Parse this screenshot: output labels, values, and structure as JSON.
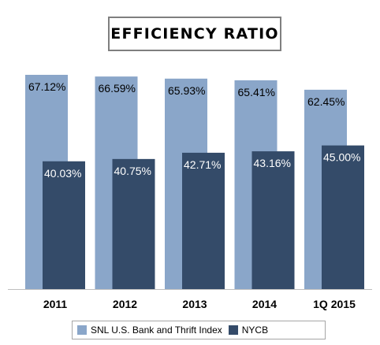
{
  "chart_data": {
    "type": "bar",
    "title": "EFFICIENCY RATIO",
    "categories": [
      "2011",
      "2012",
      "2013",
      "2014",
      "1Q 2015"
    ],
    "series": [
      {
        "name": "SNL U.S. Bank and Thrift Index",
        "values": [
          67.12,
          66.59,
          65.93,
          65.41,
          62.45
        ],
        "labels": [
          "67.12%",
          "66.59%",
          "65.93%",
          "65.41%",
          "62.45%"
        ],
        "color": "#8aa6c9"
      },
      {
        "name": "NYCB",
        "values": [
          40.03,
          40.75,
          42.71,
          43.16,
          45.0
        ],
        "labels": [
          "40.03%",
          "40.75%",
          "42.71%",
          "43.16%",
          "45.00%"
        ],
        "color": "#344b69"
      }
    ],
    "ylim": [
      0,
      67.12
    ],
    "grid": false,
    "legend_position": "bottom",
    "xlabel": "",
    "ylabel": ""
  }
}
